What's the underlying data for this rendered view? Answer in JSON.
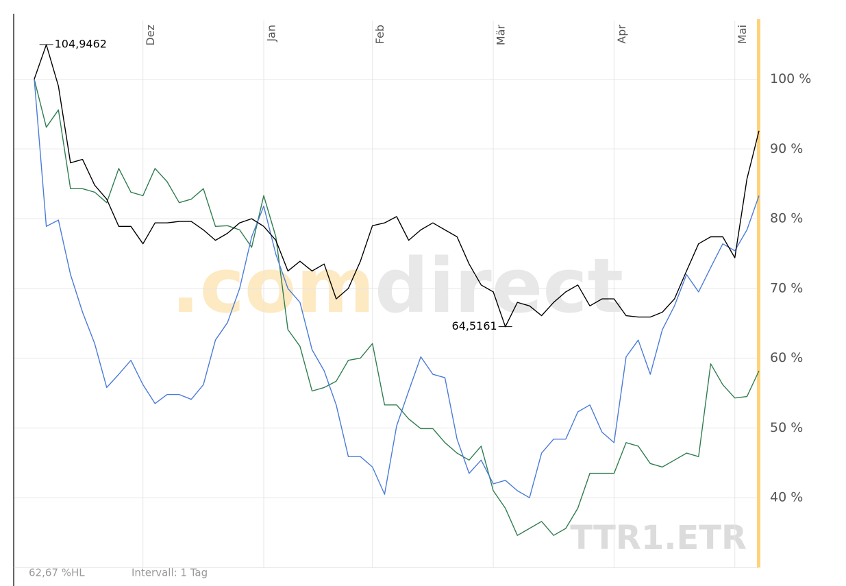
{
  "chart_data": {
    "type": "line",
    "watermark": {
      "prefix": ".com",
      "suffix": "direct"
    },
    "ticker": "TTR1.ETR",
    "footer": {
      "range": "62,67 %HL",
      "interval": "Intervall: 1 Tag"
    },
    "categories": [
      null,
      null,
      null,
      null,
      null,
      null,
      null,
      null,
      null,
      "Dez",
      null,
      null,
      null,
      null,
      null,
      null,
      null,
      null,
      null,
      "Jan",
      null,
      null,
      null,
      null,
      null,
      null,
      null,
      null,
      "Feb",
      null,
      null,
      null,
      null,
      null,
      null,
      null,
      null,
      null,
      "Mär",
      null,
      null,
      null,
      null,
      null,
      null,
      null,
      null,
      null,
      "Apr",
      null,
      null,
      null,
      null,
      null,
      null,
      null,
      null,
      null,
      "Mai",
      null,
      null
    ],
    "series": [
      {
        "color": "#000000",
        "values": [
          100,
          104.9462,
          99,
          88,
          88.5,
          84.8,
          82.8,
          78.9,
          78.9,
          76.4,
          79.4,
          79.4,
          79.6,
          79.6,
          78.4,
          76.9,
          77.9,
          79.4,
          80,
          78.9,
          76.9,
          72.5,
          73.9,
          72.5,
          73.5,
          68.5,
          70,
          73.9,
          79,
          79.4,
          80.3,
          76.9,
          78.4,
          79.4,
          78.4,
          77.4,
          73.5,
          70.5,
          69.5,
          64.5161,
          68,
          67.5,
          66.1,
          68,
          69.5,
          70.5,
          67.5,
          68.5,
          68.5,
          66.1,
          65.9,
          65.9,
          66.6,
          68.5,
          72.5,
          76.4,
          77.4,
          77.4,
          74.4,
          85.7,
          92.6
        ],
        "value_labels": [
          null,
          "104,9462",
          null,
          null,
          null,
          null,
          null,
          null,
          null,
          null,
          null,
          null,
          null,
          null,
          null,
          null,
          null,
          null,
          null,
          null,
          null,
          null,
          null,
          null,
          null,
          null,
          null,
          null,
          null,
          null,
          null,
          null,
          null,
          null,
          null,
          null,
          null,
          null,
          null,
          "64,5161",
          null,
          null,
          null,
          null,
          null,
          null,
          null,
          null,
          null,
          null,
          null,
          null,
          null,
          null,
          null,
          null,
          null,
          null,
          null,
          null,
          null
        ]
      },
      {
        "color": "#4a7bd9",
        "values": [
          100,
          78.9,
          79.8,
          72,
          66.6,
          62.1,
          55.8,
          57.7,
          59.7,
          56.2,
          53.5,
          54.8,
          54.8,
          54.1,
          56.2,
          62.6,
          65.1,
          70,
          77.4,
          81.8,
          74.9,
          70,
          68,
          61.2,
          58.2,
          53.3,
          45.9,
          45.9,
          44.4,
          40.5,
          50.3,
          55.3,
          60.2,
          57.7,
          57.2,
          48.4,
          43.5,
          45.4,
          42,
          42.5,
          41,
          40,
          46.4,
          48.4,
          48.4,
          52.3,
          53.3,
          49.4,
          47.9,
          60.2,
          62.6,
          57.7,
          64.1,
          67.5,
          72,
          69.5,
          73,
          76.4,
          75.4,
          78.4,
          83.3
        ]
      },
      {
        "color": "#2e7d4f",
        "values": [
          100,
          93.1,
          95.6,
          84.3,
          84.3,
          83.8,
          82.3,
          87.2,
          83.8,
          83.3,
          87.2,
          85.3,
          82.3,
          82.8,
          84.3,
          78.9,
          79,
          78.4,
          75.9,
          83.3,
          77.4,
          64.1,
          61.7,
          55.3,
          55.8,
          56.7,
          59.7,
          60,
          62.1,
          53.3,
          53.3,
          51.3,
          49.9,
          49.9,
          47.9,
          46.4,
          45.4,
          47.4,
          41,
          38.5,
          34.6,
          35.6,
          36.6,
          34.6,
          35.6,
          38.5,
          43.5,
          43.5,
          43.5,
          47.9,
          47.4,
          44.9,
          44.4,
          45.4,
          46.4,
          45.9,
          59.2,
          56.2,
          54.3,
          54.5,
          58.2
        ]
      }
    ],
    "ylim": [
      30,
      108.4
    ],
    "yticks": [
      {
        "value": 40,
        "label": "40 %"
      },
      {
        "value": 50,
        "label": "50 %"
      },
      {
        "value": 60,
        "label": "60 %"
      },
      {
        "value": 70,
        "label": "70 %"
      },
      {
        "value": 80,
        "label": "80 %"
      },
      {
        "value": 90,
        "label": "90 %"
      },
      {
        "value": 100,
        "label": "100 %"
      }
    ],
    "grid": true
  }
}
